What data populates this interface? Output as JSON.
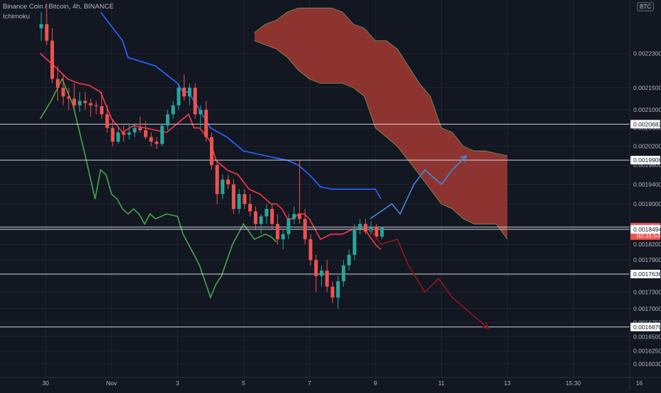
{
  "header": {
    "symbol_line": "Binance Coin / Bitcoin, 4h, BINANCE",
    "indicator": "Ichimoku",
    "currency": "BTC"
  },
  "colors": {
    "background": "#131722",
    "grid": "#1f2430",
    "bull": "#26a69a",
    "bear": "#ef5350",
    "conversion_line": "#f23645",
    "base_line": "#2962ff",
    "lagging_span": "#43a047",
    "cloud_bear": "#a83a33",
    "projection_up": "#3d8bd9",
    "projection_down": "#8b1a1a",
    "level_line": "#d1d4dc"
  },
  "chart_data": {
    "type": "candlestick",
    "symbol": "BNB/BTC",
    "interval": "4h",
    "exchange": "BINANCE",
    "y_scale": "log",
    "ylim": [
      0.00158,
      0.00236
    ],
    "x_axis": {
      "tick_labels": [
        "30",
        "Nov",
        "3",
        "5",
        "7",
        "9",
        "11",
        "13",
        "15:30",
        "16"
      ],
      "tick_index": [
        0,
        12,
        24,
        36,
        48,
        60,
        72,
        84,
        96,
        108
      ]
    },
    "y_axis": {
      "tick_labels": [
        "0.0022300",
        "0.0021500",
        "0.0021000",
        "0.0020600",
        "0.0020200",
        "0.0019800",
        "0.0019400",
        "0.0019000",
        "0.0018500",
        "0.0018200",
        "0.0017900",
        "0.0017600",
        "0.0017300",
        "0.0017000",
        "0.0016750",
        "0.0016500",
        "0.0016250",
        "0.0016030"
      ]
    },
    "price_levels": [
      "0.0020682",
      "0.0019906",
      "0.0018538",
      "0.0018494",
      "0.0017636",
      "0.0016670"
    ],
    "current_price": {
      "value": "0.0018538",
      "countdown": "02:31:53"
    },
    "candles": {
      "start_index": -0.8,
      "ohlc": [
        [
          0.00229,
          0.00233,
          0.00226,
          0.0023
        ],
        [
          0.0023,
          0.00235,
          0.00225,
          0.00226
        ],
        [
          0.00226,
          0.00229,
          0.00216,
          0.00217
        ],
        [
          0.00217,
          0.0022,
          0.00212,
          0.00215
        ],
        [
          0.00215,
          0.00218,
          0.00211,
          0.00213
        ],
        [
          0.00213,
          0.00215,
          0.0021,
          0.002125
        ],
        [
          0.002125,
          0.00216,
          0.0021,
          0.00211
        ],
        [
          0.00211,
          0.00214,
          0.002095,
          0.00212
        ],
        [
          0.00212,
          0.00214,
          0.0021,
          0.002115
        ],
        [
          0.002115,
          0.002125,
          0.002085,
          0.00211
        ],
        [
          0.00211,
          0.00212,
          0.00209,
          0.002108
        ],
        [
          0.002108,
          0.00214,
          0.00208,
          0.00209
        ],
        [
          0.00209,
          0.00211,
          0.00205,
          0.00206
        ],
        [
          0.00206,
          0.00208,
          0.00202,
          0.00203
        ],
        [
          0.00203,
          0.00206,
          0.002025,
          0.00205
        ],
        [
          0.00205,
          0.002065,
          0.00203,
          0.002045
        ],
        [
          0.002045,
          0.00207,
          0.002035,
          0.00205
        ],
        [
          0.00205,
          0.00207,
          0.00204,
          0.00206
        ],
        [
          0.00206,
          0.002085,
          0.00205,
          0.002055
        ],
        [
          0.002055,
          0.002075,
          0.002035,
          0.00204
        ],
        [
          0.00204,
          0.00205,
          0.00202,
          0.00203
        ],
        [
          0.00203,
          0.00204,
          0.002015,
          0.002025
        ],
        [
          0.002025,
          0.00207,
          0.00202,
          0.002065
        ],
        [
          0.002065,
          0.0021,
          0.002055,
          0.00209
        ],
        [
          0.00209,
          0.00212,
          0.00208,
          0.00211
        ],
        [
          0.00211,
          0.00216,
          0.0021,
          0.00215
        ],
        [
          0.00215,
          0.00218,
          0.00212,
          0.00213
        ],
        [
          0.00213,
          0.00216,
          0.00211,
          0.00215
        ],
        [
          0.00215,
          0.00216,
          0.00208,
          0.00209
        ],
        [
          0.00209,
          0.00211,
          0.00206,
          0.0021
        ],
        [
          0.0021,
          0.00212,
          0.00203,
          0.00204
        ],
        [
          0.00204,
          0.00205,
          0.00197,
          0.00198
        ],
        [
          0.00198,
          0.00199,
          0.0019,
          0.00192
        ],
        [
          0.00192,
          0.00196,
          0.00191,
          0.00195
        ],
        [
          0.00195,
          0.00196,
          0.00193,
          0.00194
        ],
        [
          0.00194,
          0.00195,
          0.00188,
          0.00189
        ],
        [
          0.00189,
          0.00193,
          0.00188,
          0.00192
        ],
        [
          0.00192,
          0.00193,
          0.00189,
          0.0019
        ],
        [
          0.0019,
          0.00192,
          0.001875,
          0.001885
        ],
        [
          0.001885,
          0.001895,
          0.00185,
          0.00186
        ],
        [
          0.00186,
          0.00188,
          0.00184,
          0.001875
        ],
        [
          0.001875,
          0.0019,
          0.00186,
          0.00189
        ],
        [
          0.00189,
          0.0019,
          0.00185,
          0.00186
        ],
        [
          0.00186,
          0.00188,
          0.00182,
          0.00183
        ],
        [
          0.00183,
          0.00185,
          0.00181,
          0.00184
        ],
        [
          0.00184,
          0.00188,
          0.00183,
          0.00187
        ],
        [
          0.00187,
          0.001895,
          0.00186,
          0.00188
        ],
        [
          0.00188,
          0.00199,
          0.00186,
          0.00187
        ],
        [
          0.00187,
          0.00189,
          0.00182,
          0.00183
        ],
        [
          0.00183,
          0.00184,
          0.00178,
          0.00179
        ],
        [
          0.00179,
          0.0018,
          0.00173,
          0.00176
        ],
        [
          0.00176,
          0.00178,
          0.00174,
          0.00177
        ],
        [
          0.00177,
          0.00179,
          0.00173,
          0.00174
        ],
        [
          0.00174,
          0.00175,
          0.00171,
          0.00172
        ],
        [
          0.00172,
          0.00176,
          0.0017,
          0.00175
        ],
        [
          0.00175,
          0.00179,
          0.00174,
          0.00178
        ],
        [
          0.00178,
          0.00181,
          0.00177,
          0.0018
        ],
        [
          0.0018,
          0.00186,
          0.00179,
          0.00185
        ],
        [
          0.00185,
          0.00187,
          0.00184,
          0.00186
        ],
        [
          0.00186,
          0.00187,
          0.00184,
          0.001845
        ],
        [
          0.001845,
          0.001865,
          0.00184,
          0.001855
        ],
        [
          0.001855,
          0.00186,
          0.00183,
          0.001835
        ],
        [
          0.001835,
          0.001855,
          0.00183,
          0.001854
        ]
      ]
    },
    "series": [
      {
        "type": "line",
        "color_key": "conversion_line",
        "x": [
          -1,
          2,
          4,
          6,
          8,
          10,
          12,
          14,
          16,
          18,
          20,
          22,
          24,
          26,
          27,
          28,
          30,
          31,
          32,
          33,
          35,
          37,
          39,
          40,
          41,
          42,
          43,
          44,
          45,
          46,
          47,
          48,
          49,
          50,
          52,
          54,
          55,
          56,
          57,
          58,
          60,
          61
        ],
        "y": [
          0.00223,
          0.002195,
          0.00217,
          0.00216,
          0.002155,
          0.00214,
          0.00208,
          0.00205,
          0.002065,
          0.00206,
          0.002055,
          0.00205,
          0.00207,
          0.00209,
          0.00206,
          0.00206,
          0.00203,
          0.00199,
          0.00198,
          0.00197,
          0.00196,
          0.00193,
          0.00192,
          0.00191,
          0.0019,
          0.0019,
          0.00189,
          0.00187,
          0.00187,
          0.00188,
          0.00188,
          0.00187,
          0.00185,
          0.00183,
          0.00184,
          0.00184,
          0.001845,
          0.00185,
          0.00185,
          0.00185,
          0.00182,
          0.00181
        ]
      },
      {
        "type": "line",
        "color_key": "base_line",
        "x": [
          10,
          14,
          15,
          20,
          22,
          24,
          25,
          26,
          28,
          29,
          30,
          33,
          36,
          40,
          44,
          46,
          48,
          50,
          52,
          60,
          61
        ],
        "y": [
          0.00233,
          0.00226,
          0.00222,
          0.0022,
          0.00218,
          0.00216,
          0.00214,
          0.00214,
          0.0021,
          0.00208,
          0.00206,
          0.00204,
          0.00201,
          0.002,
          0.00199,
          0.00198,
          0.00196,
          0.001935,
          0.00193,
          0.00193,
          0.00191
        ]
      },
      {
        "type": "line",
        "color_key": "lagging_span",
        "x": [
          -1,
          1,
          3,
          5,
          7,
          8,
          9,
          10,
          11,
          12,
          13,
          14,
          15,
          16,
          17,
          18,
          19,
          20,
          22,
          24,
          25,
          26,
          27,
          28,
          29,
          30,
          31,
          32,
          34,
          36,
          38,
          40,
          41,
          42
        ],
        "y": [
          0.00208,
          0.00212,
          0.00217,
          0.00211,
          0.00201,
          0.00196,
          0.00191,
          0.00197,
          0.00196,
          0.00192,
          0.00191,
          0.00189,
          0.00188,
          0.00189,
          0.00188,
          0.00186,
          0.00188,
          0.00187,
          0.00188,
          0.001875,
          0.00184,
          0.00182,
          0.0018,
          0.00178,
          0.00175,
          0.00172,
          0.001745,
          0.00176,
          0.00182,
          0.00186,
          0.00183,
          0.00184,
          0.001835,
          0.001825
        ]
      },
      {
        "type": "area",
        "name": "kumo",
        "color_key": "cloud_bear",
        "x": [
          38,
          40,
          42,
          44,
          46,
          48,
          50,
          52,
          54,
          56,
          58,
          60,
          62,
          64,
          66,
          68,
          70,
          72,
          74,
          76,
          78,
          80,
          82,
          84
        ],
        "upper": [
          0.00228,
          0.0023,
          0.00231,
          0.00233,
          0.00234,
          0.00234,
          0.00234,
          0.00234,
          0.00233,
          0.0023,
          0.00229,
          0.00226,
          0.00226,
          0.00224,
          0.0022,
          0.00216,
          0.00213,
          0.00206,
          0.00205,
          0.00202,
          0.00201,
          0.00201,
          0.002005,
          0.002
        ],
        "lower": [
          0.00226,
          0.00225,
          0.00224,
          0.00222,
          0.00219,
          0.00217,
          0.00216,
          0.00216,
          0.00216,
          0.00215,
          0.00213,
          0.00206,
          0.00204,
          0.00202,
          0.00199,
          0.00196,
          0.00193,
          0.0019,
          0.00189,
          0.00187,
          0.00186,
          0.00186,
          0.00186,
          0.00183
        ]
      },
      {
        "type": "line",
        "color_key": "projection_up",
        "arrow": true,
        "x": [
          59,
          63,
          64.5,
          67,
          69,
          72,
          74,
          76.5
        ],
        "y": [
          0.00187,
          0.0019,
          0.00188,
          0.00194,
          0.00197,
          0.00194,
          0.00197,
          0.002
        ]
      },
      {
        "type": "line",
        "color_key": "projection_down",
        "arrow": true,
        "x": [
          59,
          61,
          64,
          66,
          69,
          71.5,
          74,
          80.5
        ],
        "y": [
          0.00185,
          0.00182,
          0.00183,
          0.00178,
          0.00173,
          0.001755,
          0.00172,
          0.001665
        ]
      }
    ]
  }
}
